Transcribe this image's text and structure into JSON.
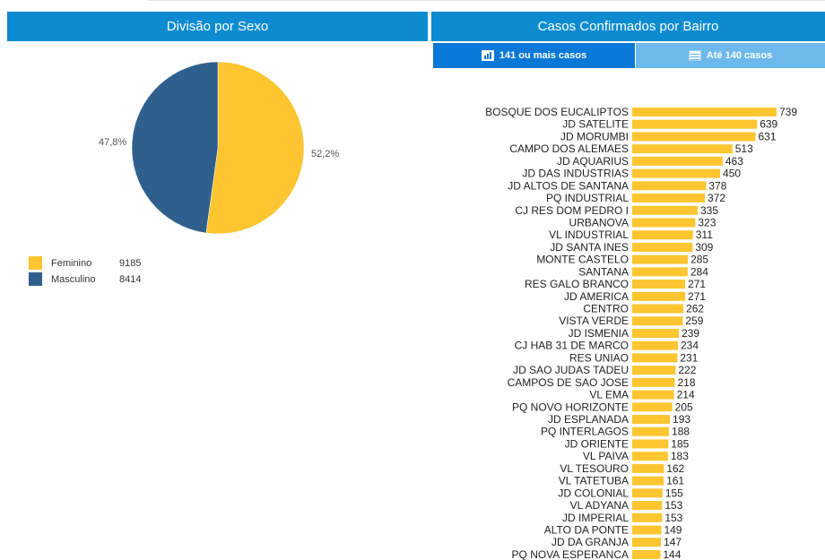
{
  "left_panel": {
    "title": "Divisão por Sexo"
  },
  "right_panel": {
    "title": "Casos Confirmados por Bairro",
    "tabs": [
      {
        "label": "141 ou mais casos",
        "icon": "bar-chart-icon",
        "active": true
      },
      {
        "label": "Até 140 casos",
        "icon": "table-icon",
        "active": false
      }
    ]
  },
  "colors": {
    "header": "#0c8bd0",
    "tab_active": "#0a78d7",
    "tab_inactive": "#6cb9ec",
    "feminino": "#fdc52f",
    "masculino": "#2f5f8d",
    "bar": "#fdc52f"
  },
  "chart_data": [
    {
      "type": "pie",
      "slices": [
        {
          "name": "Feminino",
          "value": 9185,
          "percent_label": "52,2%",
          "color": "#fdc52f"
        },
        {
          "name": "Masculino",
          "value": 8414,
          "percent_label": "47,8%",
          "color": "#2f5f8d"
        }
      ]
    },
    {
      "type": "bar",
      "orientation": "horizontal",
      "categories": [
        "BOSQUE DOS EUCALIPTOS",
        "JD SATELITE",
        "JD MORUMBI",
        "CAMPO DOS ALEMAES",
        "JD AQUARIUS",
        "JD DAS INDUSTRIAS",
        "JD ALTOS DE SANTANA",
        "PQ INDUSTRIAL",
        "CJ RES DOM PEDRO I",
        "URBANOVA",
        "VL INDUSTRIAL",
        "JD SANTA INES",
        "MONTE CASTELO",
        "SANTANA",
        "RES GALO BRANCO",
        "JD AMERICA",
        "CENTRO",
        "VISTA VERDE",
        "JD ISMENIA",
        "CJ HAB 31 DE MARCO",
        "RES UNIAO",
        "JD SAO JUDAS TADEU",
        "CAMPOS DE SAO JOSE",
        "VL EMA",
        "PQ NOVO HORIZONTE",
        "JD ESPLANADA",
        "PQ INTERLAGOS",
        "JD ORIENTE",
        "VL PAIVA",
        "VL TESOURO",
        "VL TATETUBA",
        "JD COLONIAL",
        "VL ADYANA",
        "JD IMPERIAL",
        "ALTO DA PONTE",
        "JD DA GRANJA",
        "PQ NOVA ESPERANCA"
      ],
      "values": [
        739,
        639,
        631,
        513,
        463,
        450,
        378,
        372,
        335,
        323,
        311,
        309,
        285,
        284,
        271,
        271,
        262,
        259,
        239,
        234,
        231,
        222,
        218,
        214,
        205,
        193,
        188,
        185,
        183,
        162,
        161,
        155,
        153,
        153,
        149,
        147,
        144
      ],
      "value_labels": [
        "739",
        "639",
        "631",
        "513",
        "463",
        "450",
        "378",
        "372",
        "335",
        "323",
        "311",
        "309",
        "285",
        "284",
        "271",
        "271",
        "262",
        "259",
        "239",
        "234",
        "231",
        "222",
        "218",
        "214",
        "205",
        "193",
        "188",
        "185",
        "183",
        "162",
        "161",
        "155",
        "153",
        "153",
        "149",
        "147",
        "144"
      ],
      "xlim": [
        0,
        739
      ]
    }
  ]
}
